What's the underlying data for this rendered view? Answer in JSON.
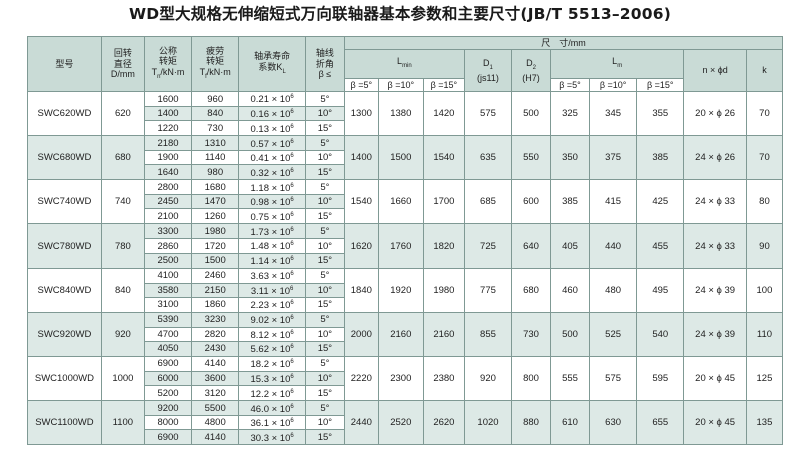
{
  "title": "WD型大规格无伸缩短式万向联轴器基本参数和主要尺寸(JB/T 5513–2006)",
  "header": {
    "model": "型号",
    "rot_dia": [
      "回转",
      "直径",
      "D/mm"
    ],
    "nom_torque": [
      "公称",
      "转矩",
      "T",
      "n",
      "/kN·m"
    ],
    "fat_torque": [
      "疲劳",
      "转矩",
      "T",
      "f",
      "/kN·m"
    ],
    "bearing_life": [
      "轴承寿命",
      "系数K",
      "L"
    ],
    "axis_angle": [
      "轴线",
      "折角",
      "β ≤"
    ],
    "dims_title": "尺　寸/mm",
    "lmin": "L",
    "lmin_sub": "min",
    "d1": "D",
    "d1_sub": "1",
    "d1_fit": "(js11)",
    "d2": "D",
    "d2_sub": "2",
    "d2_fit": "(H7)",
    "lm": "L",
    "lm_sub": "m",
    "nphid": "n × ϕd",
    "k": "k",
    "beta5": "β =5°",
    "beta10": "β =10°",
    "beta15": "β =15°"
  },
  "groups": [
    {
      "model": "SWC620WD",
      "D": "620",
      "lmin": [
        "1300",
        "1380",
        "1420"
      ],
      "D1": "575",
      "D2": "500",
      "lm": [
        "325",
        "345",
        "355"
      ],
      "nphid": "20 × ϕ 26",
      "k": "70",
      "rows": [
        {
          "tn": "1600",
          "tf": "960",
          "kl": "0.21 × 10",
          "exp": "6",
          "ang": "5°"
        },
        {
          "tn": "1400",
          "tf": "840",
          "kl": "0.16 × 10",
          "exp": "6",
          "ang": "10°"
        },
        {
          "tn": "1220",
          "tf": "730",
          "kl": "0.13 × 10",
          "exp": "6",
          "ang": "15°"
        }
      ]
    },
    {
      "model": "SWC680WD",
      "D": "680",
      "lmin": [
        "1400",
        "1500",
        "1540"
      ],
      "D1": "635",
      "D2": "550",
      "lm": [
        "350",
        "375",
        "385"
      ],
      "nphid": "24 × ϕ 26",
      "k": "70",
      "rows": [
        {
          "tn": "2180",
          "tf": "1310",
          "kl": "0.57 × 10",
          "exp": "6",
          "ang": "5°"
        },
        {
          "tn": "1900",
          "tf": "1140",
          "kl": "0.41 × 10",
          "exp": "6",
          "ang": "10°"
        },
        {
          "tn": "1640",
          "tf": "980",
          "kl": "0.32 × 10",
          "exp": "6",
          "ang": "15°"
        }
      ]
    },
    {
      "model": "SWC740WD",
      "D": "740",
      "lmin": [
        "1540",
        "1660",
        "1700"
      ],
      "D1": "685",
      "D2": "600",
      "lm": [
        "385",
        "415",
        "425"
      ],
      "nphid": "24 × ϕ 33",
      "k": "80",
      "rows": [
        {
          "tn": "2800",
          "tf": "1680",
          "kl": "1.18 × 10",
          "exp": "6",
          "ang": "5°"
        },
        {
          "tn": "2450",
          "tf": "1470",
          "kl": "0.98 × 10",
          "exp": "6",
          "ang": "10°"
        },
        {
          "tn": "2100",
          "tf": "1260",
          "kl": "0.75 × 10",
          "exp": "6",
          "ang": "15°"
        }
      ]
    },
    {
      "model": "SWC780WD",
      "D": "780",
      "lmin": [
        "1620",
        "1760",
        "1820"
      ],
      "D1": "725",
      "D2": "640",
      "lm": [
        "405",
        "440",
        "455"
      ],
      "nphid": "24 × ϕ 33",
      "k": "90",
      "rows": [
        {
          "tn": "3300",
          "tf": "1980",
          "kl": "1.73 × 10",
          "exp": "6",
          "ang": "5°"
        },
        {
          "tn": "2860",
          "tf": "1720",
          "kl": "1.48 × 10",
          "exp": "6",
          "ang": "10°"
        },
        {
          "tn": "2500",
          "tf": "1500",
          "kl": "1.14 × 10",
          "exp": "6",
          "ang": "15°"
        }
      ]
    },
    {
      "model": "SWC840WD",
      "D": "840",
      "lmin": [
        "1840",
        "1920",
        "1980"
      ],
      "D1": "775",
      "D2": "680",
      "lm": [
        "460",
        "480",
        "495"
      ],
      "nphid": "24 × ϕ 39",
      "k": "100",
      "rows": [
        {
          "tn": "4100",
          "tf": "2460",
          "kl": "3.63 × 10",
          "exp": "6",
          "ang": "5°"
        },
        {
          "tn": "3580",
          "tf": "2150",
          "kl": "3.11 × 10",
          "exp": "6",
          "ang": "10°"
        },
        {
          "tn": "3100",
          "tf": "1860",
          "kl": "2.23 × 10",
          "exp": "6",
          "ang": "15°"
        }
      ]
    },
    {
      "model": "SWC920WD",
      "D": "920",
      "lmin": [
        "2000",
        "2160",
        "2160"
      ],
      "D1": "855",
      "D2": "730",
      "lm": [
        "500",
        "525",
        "540"
      ],
      "nphid": "24 × ϕ 39",
      "k": "110",
      "rows": [
        {
          "tn": "5390",
          "tf": "3230",
          "kl": "9.02 × 10",
          "exp": "6",
          "ang": "5°"
        },
        {
          "tn": "4700",
          "tf": "2820",
          "kl": "8.12 × 10",
          "exp": "6",
          "ang": "10°"
        },
        {
          "tn": "4050",
          "tf": "2430",
          "kl": "5.62 × 10",
          "exp": "6",
          "ang": "15°"
        }
      ]
    },
    {
      "model": "SWC1000WD",
      "D": "1000",
      "lmin": [
        "2220",
        "2300",
        "2380"
      ],
      "D1": "920",
      "D2": "800",
      "lm": [
        "555",
        "575",
        "595"
      ],
      "nphid": "20 × ϕ 45",
      "k": "125",
      "rows": [
        {
          "tn": "6900",
          "tf": "4140",
          "kl": "18.2 × 10",
          "exp": "6",
          "ang": "5°"
        },
        {
          "tn": "6000",
          "tf": "3600",
          "kl": "15.3 × 10",
          "exp": "6",
          "ang": "10°"
        },
        {
          "tn": "5200",
          "tf": "3120",
          "kl": "12.2 × 10",
          "exp": "6",
          "ang": "15°"
        }
      ]
    },
    {
      "model": "SWC1100WD",
      "D": "1100",
      "lmin": [
        "2440",
        "2520",
        "2620"
      ],
      "D1": "1020",
      "D2": "880",
      "lm": [
        "610",
        "630",
        "655"
      ],
      "nphid": "20 × ϕ 45",
      "k": "135",
      "rows": [
        {
          "tn": "9200",
          "tf": "5500",
          "kl": "46.0 × 10",
          "exp": "6",
          "ang": "5°"
        },
        {
          "tn": "8000",
          "tf": "4800",
          "kl": "36.1 × 10",
          "exp": "6",
          "ang": "10°"
        },
        {
          "tn": "6900",
          "tf": "4140",
          "kl": "30.3 × 10",
          "exp": "6",
          "ang": "15°"
        }
      ]
    }
  ]
}
